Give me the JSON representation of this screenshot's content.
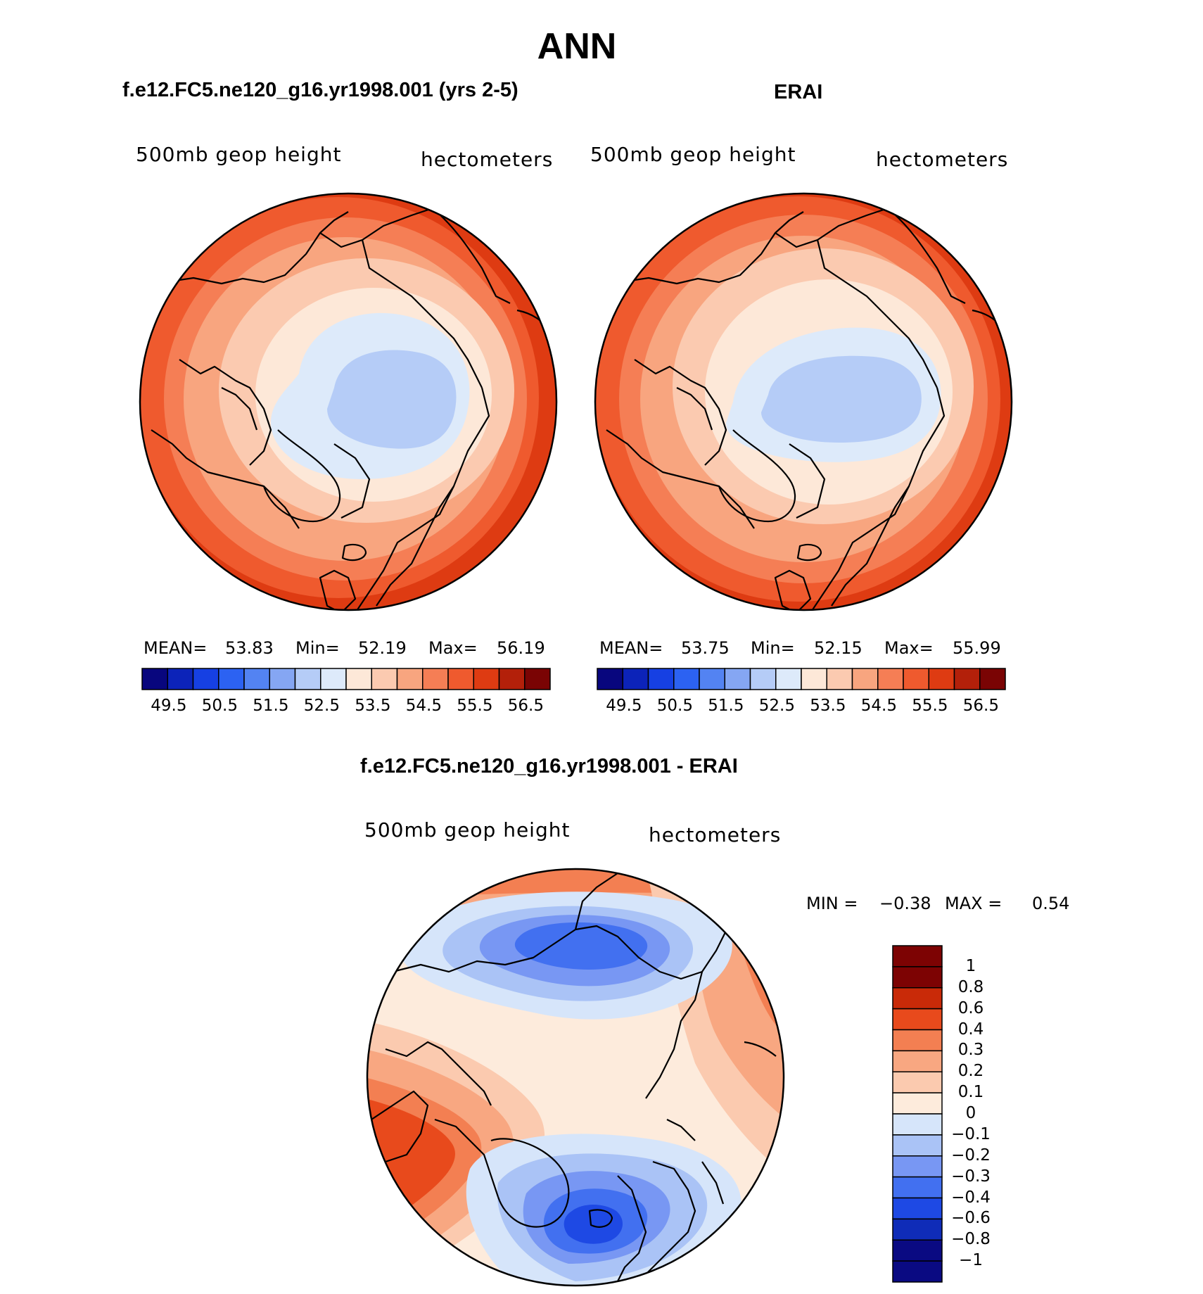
{
  "title": "ANN",
  "colors": {
    "abs_scale": [
      "#08067e",
      "#0c23b9",
      "#1640e3",
      "#2c62f2",
      "#5383f2",
      "#85a6f3",
      "#b5ccf7",
      "#ddeafa",
      "#fde8d8",
      "#fbcab0",
      "#f8a57f",
      "#f57e55",
      "#ef5a2e",
      "#de3b12",
      "#b3200a",
      "#7a0404"
    ],
    "diff_scale": [
      "#0a0a82",
      "#0f2cb8",
      "#1e49e4",
      "#4270f0",
      "#7897f3",
      "#aac3f6",
      "#d6e5fa",
      "#fdebdc",
      "#fbcaaf",
      "#f8a781",
      "#f37f52",
      "#e84a1c",
      "#c92a08",
      "#7d0303"
    ]
  },
  "chart_data": [
    {
      "type": "heatmap",
      "title": "f.e12.FC5.ne120_g16.yr1998.001 (yrs 2-5)",
      "variable": "500mb geop height",
      "units": "hectometers",
      "projection": "north polar stereographic",
      "stats": {
        "mean_label": "MEAN=",
        "mean": "53.83",
        "min_label": "Min=",
        "min": "52.19",
        "max_label": "Max=",
        "max": "56.19"
      },
      "levels": [
        49.5,
        50,
        50.5,
        51,
        51.5,
        52,
        52.5,
        53,
        53.5,
        54,
        54.5,
        55,
        55.5,
        56,
        56.5
      ],
      "colorbar_tick_labels": [
        "49.5",
        "50.5",
        "51.5",
        "52.5",
        "53.5",
        "54.5",
        "55.5",
        "56.5"
      ]
    },
    {
      "type": "heatmap",
      "title": "ERAI",
      "variable": "500mb geop height",
      "units": "hectometers",
      "projection": "north polar stereographic",
      "stats": {
        "mean_label": "MEAN=",
        "mean": "53.75",
        "min_label": "Min=",
        "min": "52.15",
        "max_label": "Max=",
        "max": "55.99"
      },
      "levels": [
        49.5,
        50,
        50.5,
        51,
        51.5,
        52,
        52.5,
        53,
        53.5,
        54,
        54.5,
        55,
        55.5,
        56,
        56.5
      ],
      "colorbar_tick_labels": [
        "49.5",
        "50.5",
        "51.5",
        "52.5",
        "53.5",
        "54.5",
        "55.5",
        "56.5"
      ]
    },
    {
      "type": "heatmap",
      "title": "f.e12.FC5.ne120_g16.yr1998.001 - ERAI",
      "variable": "500mb geop height",
      "units": "hectometers",
      "projection": "north polar stereographic",
      "stats": {
        "min_label": "MIN =",
        "min": "−0.38",
        "max_label": "MAX =",
        "max": "0.54"
      },
      "levels": [
        -1,
        -0.8,
        -0.6,
        -0.4,
        -0.3,
        -0.2,
        -0.1,
        0,
        0.1,
        0.2,
        0.3,
        0.4,
        0.6,
        0.8,
        1
      ],
      "colorbar_tick_labels": [
        "1",
        "0.8",
        "0.6",
        "0.4",
        "0.3",
        "0.2",
        "0.1",
        "0",
        "−0.1",
        "−0.2",
        "−0.3",
        "−0.4",
        "−0.6",
        "−0.8",
        "−1"
      ]
    }
  ]
}
